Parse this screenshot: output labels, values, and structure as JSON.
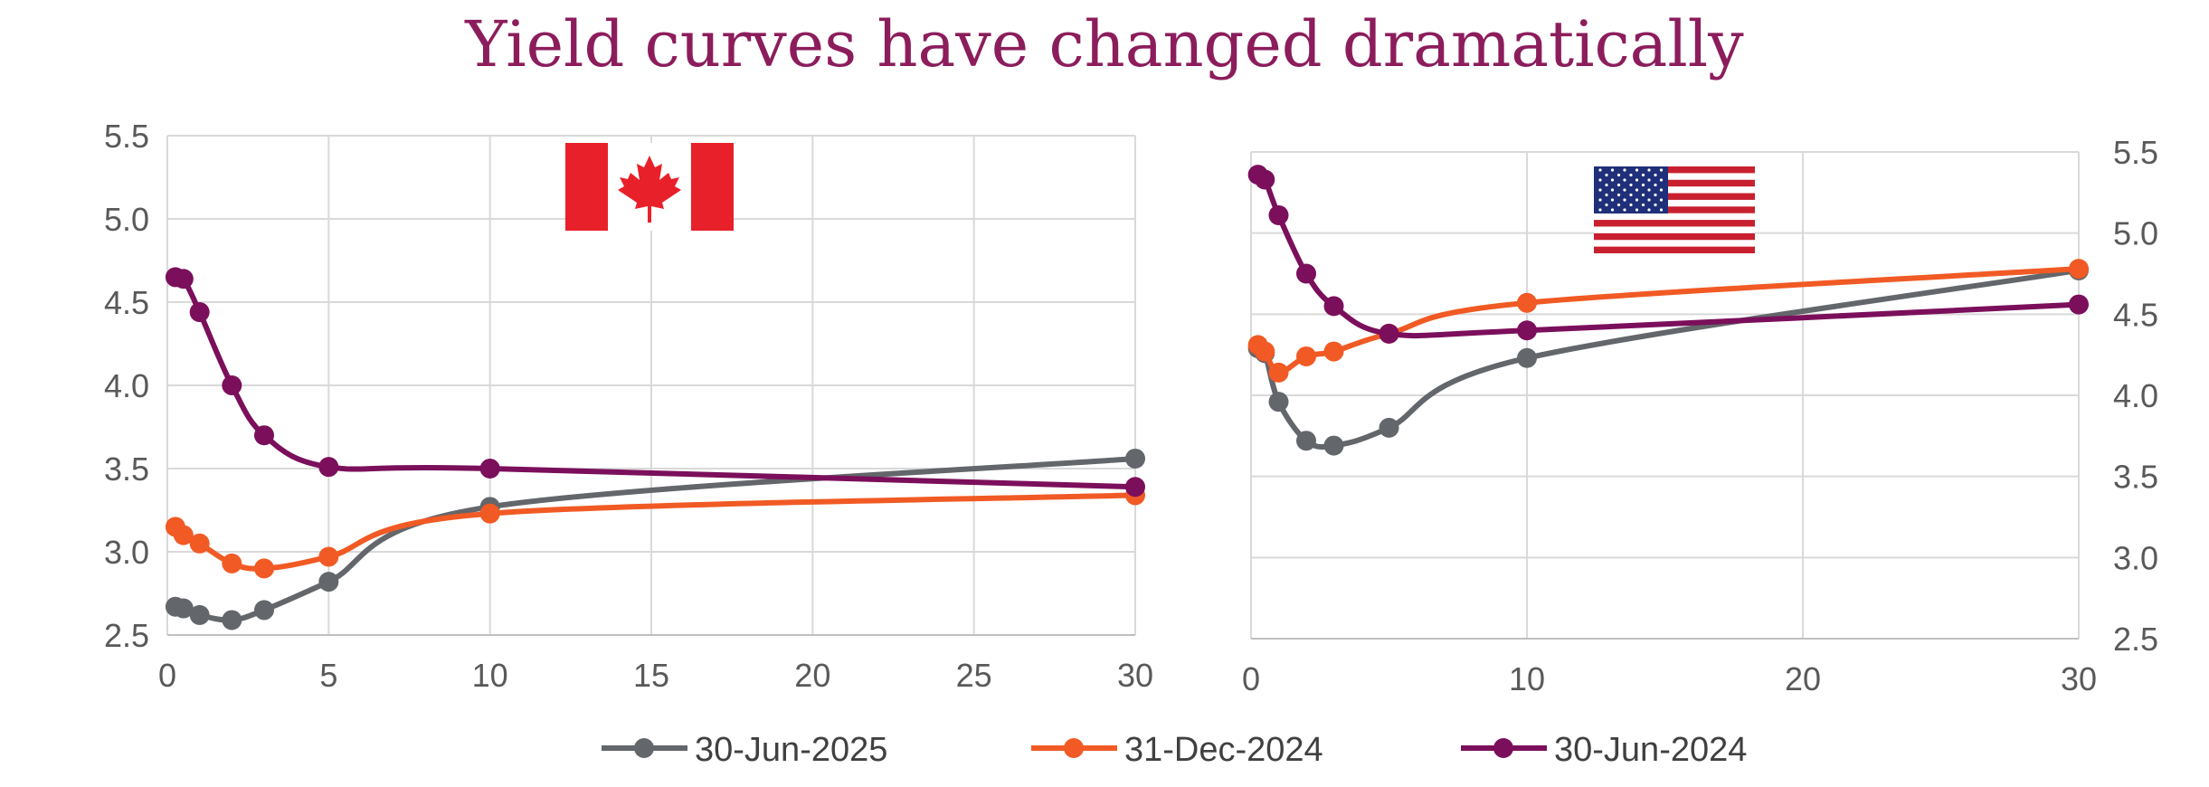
{
  "title": "Yield curves have changed dramatically",
  "colors": {
    "title": "#8c1d5c",
    "series": [
      "#63666a",
      "#f15a24",
      "#7b0f5b"
    ],
    "grid": "#d9d9d9",
    "axis_text": "#595959"
  },
  "chart_data": [
    {
      "type": "line",
      "country": "Canada",
      "flag_icon": "canada-flag-icon",
      "x_ticks": [
        0,
        5,
        10,
        15,
        20,
        25,
        30
      ],
      "y_ticks": [
        "2.5",
        "3.0",
        "3.5",
        "4.0",
        "4.5",
        "5.0",
        "5.5"
      ],
      "xlim": [
        0,
        30
      ],
      "ylim": [
        2.5,
        5.5
      ],
      "y_axis_side": "left",
      "series": [
        {
          "name": "30-Jun-2025",
          "x": [
            0.25,
            0.5,
            1,
            2,
            3,
            5,
            10,
            30
          ],
          "values": [
            2.67,
            2.66,
            2.62,
            2.59,
            2.65,
            2.82,
            3.27,
            3.56
          ]
        },
        {
          "name": "31-Dec-2024",
          "x": [
            0.25,
            0.5,
            1,
            2,
            3,
            5,
            10,
            30
          ],
          "values": [
            3.15,
            3.1,
            3.05,
            2.93,
            2.9,
            2.97,
            3.23,
            3.34
          ]
        },
        {
          "name": "30-Jun-2024",
          "x": [
            0.25,
            0.5,
            1,
            2,
            3,
            5,
            10,
            30
          ],
          "values": [
            4.65,
            4.64,
            4.44,
            4.0,
            3.7,
            3.51,
            3.5,
            3.39
          ]
        }
      ]
    },
    {
      "type": "line",
      "country": "United States",
      "flag_icon": "us-flag-icon",
      "x_ticks": [
        0,
        10,
        20,
        30
      ],
      "y_ticks": [
        "2.5",
        "3.0",
        "3.5",
        "4.0",
        "4.5",
        "5.0",
        "5.5"
      ],
      "xlim": [
        0,
        30
      ],
      "ylim": [
        2.5,
        5.5
      ],
      "y_axis_side": "right",
      "series": [
        {
          "name": "30-Jun-2025",
          "x": [
            0.25,
            0.5,
            1,
            2,
            3,
            5,
            10,
            30
          ],
          "values": [
            4.29,
            4.26,
            3.96,
            3.72,
            3.69,
            3.8,
            4.23,
            4.77
          ]
        },
        {
          "name": "31-Dec-2024",
          "x": [
            0.25,
            0.5,
            1,
            2,
            3,
            5,
            10,
            30
          ],
          "values": [
            4.31,
            4.27,
            4.14,
            4.24,
            4.27,
            4.38,
            4.57,
            4.78
          ]
        },
        {
          "name": "30-Jun-2024",
          "x": [
            0.25,
            0.5,
            1,
            2,
            3,
            5,
            10,
            30
          ],
          "values": [
            5.36,
            5.33,
            5.11,
            4.75,
            4.55,
            4.38,
            4.4,
            4.56
          ]
        }
      ]
    }
  ],
  "legend": [
    "30-Jun-2025",
    "31-Dec-2024",
    "30-Jun-2024"
  ]
}
